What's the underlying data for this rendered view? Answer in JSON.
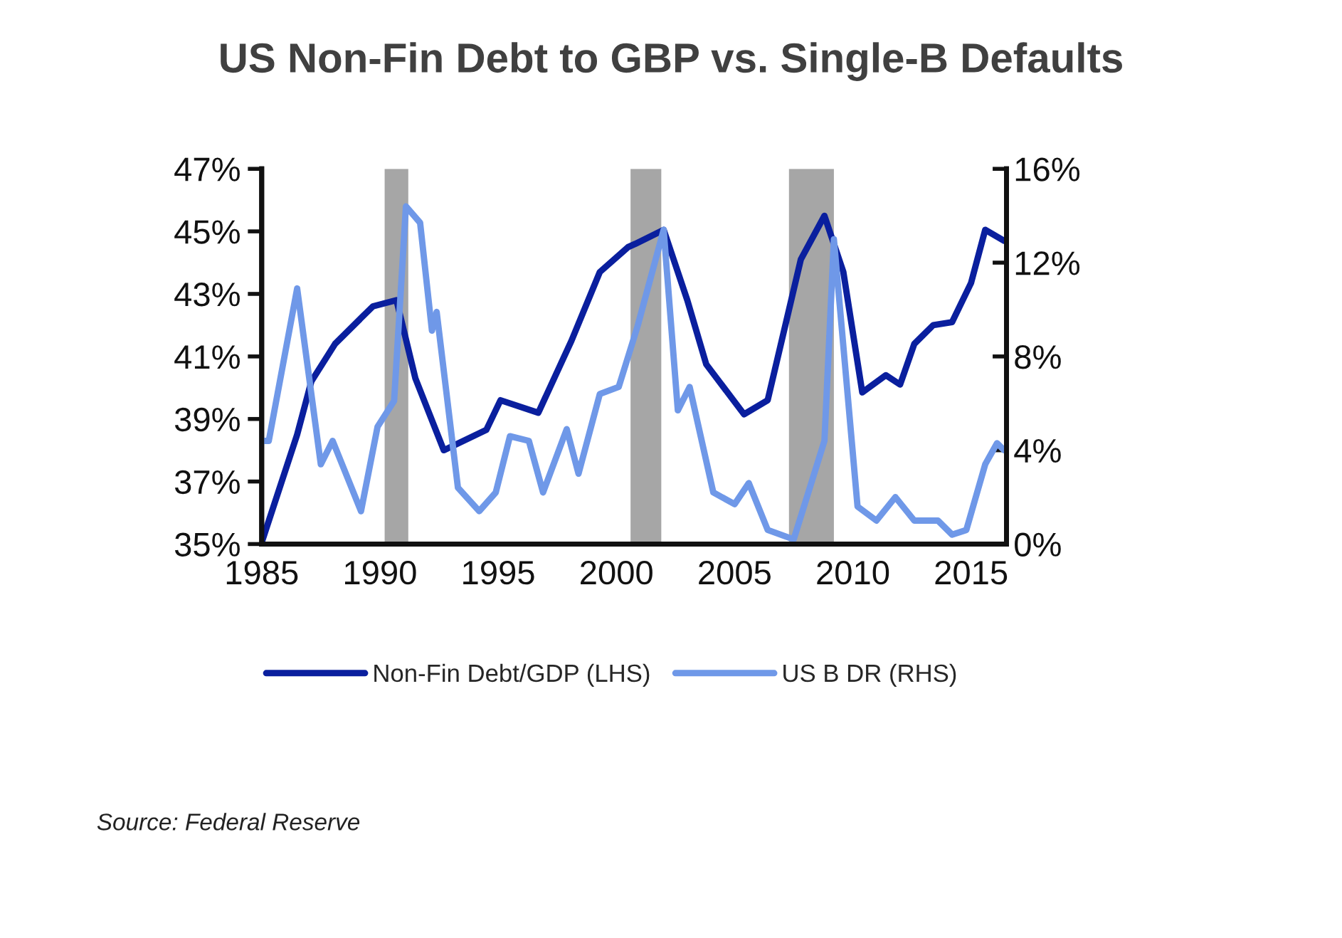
{
  "chart_data": {
    "type": "line",
    "title": "US Non-Fin Debt to GBP vs. Single-B Defaults",
    "xlim": [
      1985,
      2016.5
    ],
    "xticks": [
      1985,
      1990,
      1995,
      2000,
      2005,
      2010,
      2015
    ],
    "ylim": [
      35,
      47
    ],
    "yticks": [
      {
        "value": 35,
        "label": "35%"
      },
      {
        "value": 37,
        "label": "37%"
      },
      {
        "value": 39,
        "label": "39%"
      },
      {
        "value": 41,
        "label": "41%"
      },
      {
        "value": 43,
        "label": "43%"
      },
      {
        "value": 45,
        "label": "45%"
      },
      {
        "value": 47,
        "label": "47%"
      }
    ],
    "y2lim": [
      0,
      16
    ],
    "y2ticks": [
      {
        "value": 0,
        "label": "0%"
      },
      {
        "value": 4,
        "label": "4%"
      },
      {
        "value": 8,
        "label": "8%"
      },
      {
        "value": 12,
        "label": "12%"
      },
      {
        "value": 16,
        "label": "16%"
      }
    ],
    "grid": false,
    "legend": "bottom",
    "marker": "none",
    "line_style": "solid",
    "bands": [
      {
        "axis": "x",
        "from": 1990.2,
        "to": 1991.2,
        "color": "#a6a6a6"
      },
      {
        "axis": "x",
        "from": 2000.6,
        "to": 2001.9,
        "color": "#a6a6a6"
      },
      {
        "axis": "x",
        "from": 2007.3,
        "to": 2009.2,
        "color": "#a6a6a6"
      }
    ],
    "series": [
      {
        "name": "Non-Fin Debt/GDP (LHS)",
        "color": "#0a1f9e",
        "x": [
          1985.0,
          1986.5,
          1987.1,
          1988.1,
          1989.7,
          1990.7,
          1991.5,
          1992.7,
          1994.5,
          1995.1,
          1996.7,
          1998.1,
          1999.3,
          2000.5,
          2000.8,
          2002.0,
          2003.0,
          2003.8,
          2005.4,
          2006.4,
          2007.8,
          2008.8,
          2009.6,
          2010.4,
          2011.4,
          2012.0,
          2012.6,
          2013.4,
          2014.2,
          2015.0,
          2015.6,
          2016.4
        ],
        "values": [
          35.05,
          38.5,
          40.2,
          41.4,
          42.6,
          42.8,
          40.3,
          38.0,
          38.65,
          39.6,
          39.2,
          41.5,
          43.7,
          44.5,
          44.6,
          45.05,
          42.8,
          40.75,
          39.15,
          39.6,
          44.1,
          45.5,
          43.7,
          39.85,
          40.4,
          40.1,
          41.4,
          42.0,
          42.1,
          43.35,
          45.05,
          44.7
        ]
      },
      {
        "name": "US B DR (RHS)",
        "color": "#6f98e8",
        "axis": "y2",
        "x": [
          1985.0,
          1985.3,
          1986.5,
          1987.5,
          1988.0,
          1989.2,
          1989.9,
          1990.6,
          1991.1,
          1991.7,
          1992.2,
          1992.4,
          1993.3,
          1994.2,
          1994.9,
          1995.5,
          1996.3,
          1996.9,
          1997.9,
          1998.4,
          1999.3,
          2000.1,
          2000.9,
          2002.0,
          2002.6,
          2003.1,
          2004.1,
          2005.0,
          2005.6,
          2006.4,
          2007.5,
          2008.8,
          2009.2,
          2010.2,
          2011.0,
          2011.8,
          2012.6,
          2013.6,
          2014.2,
          2014.8,
          2015.6,
          2016.1,
          2016.4
        ],
        "values": [
          4.4,
          4.4,
          10.9,
          3.4,
          4.4,
          1.4,
          5.0,
          6.1,
          14.4,
          13.7,
          9.1,
          9.9,
          2.4,
          1.4,
          2.2,
          4.6,
          4.4,
          2.2,
          4.9,
          3.0,
          6.4,
          6.7,
          9.3,
          13.4,
          5.7,
          6.7,
          2.2,
          1.7,
          2.6,
          0.6,
          0.2,
          4.4,
          13.0,
          1.6,
          1.0,
          2.0,
          1.0,
          1.0,
          0.4,
          0.6,
          3.4,
          4.3,
          4.0
        ]
      }
    ],
    "annotations": [
      "Source: Federal Reserve"
    ]
  }
}
